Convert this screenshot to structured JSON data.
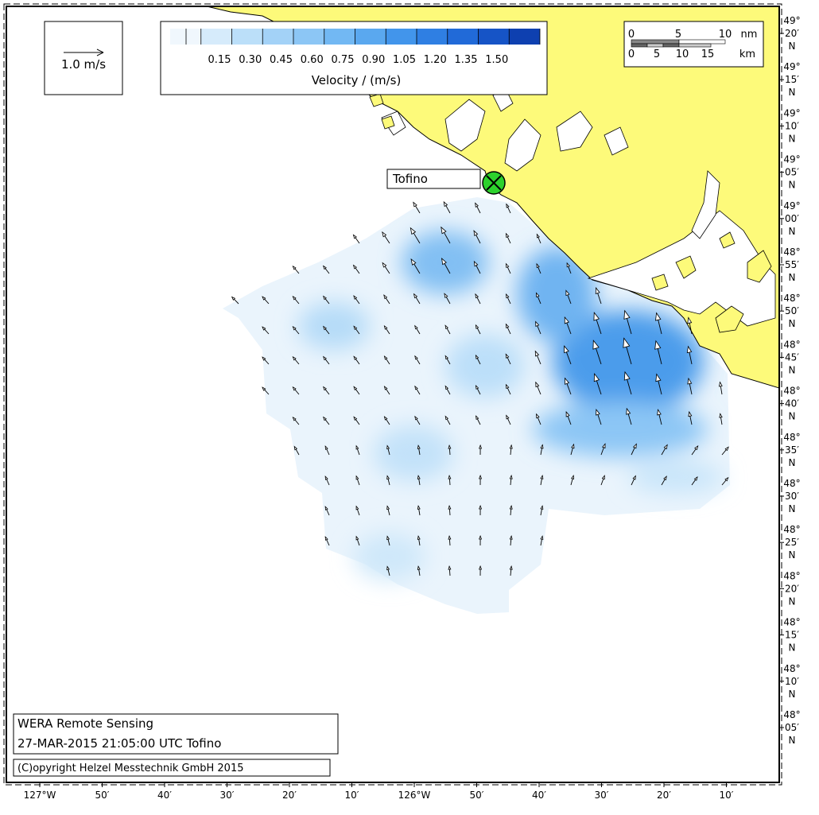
{
  "velocity_legend": {
    "ticks": [
      "0.15",
      "0.30",
      "0.45",
      "0.60",
      "0.75",
      "0.90",
      "1.05",
      "1.20",
      "1.35",
      "1.50"
    ],
    "colors": [
      "#f0f7fd",
      "#d6ebfb",
      "#bbdff9",
      "#a3d2f7",
      "#8cc6f5",
      "#72b8f3",
      "#5aa8ef",
      "#4295eb",
      "#2f7fe3",
      "#216ad8",
      "#1654c6",
      "#0e40b0"
    ],
    "label": "Velocity / (m/s)"
  },
  "scale_arrow": {
    "label": "1.0 m/s"
  },
  "distance_scale": {
    "nm_ticks": [
      "0",
      "5",
      "10"
    ],
    "nm_unit": "nm",
    "km_ticks": [
      "0",
      "5",
      "10",
      "15"
    ],
    "km_unit": "km"
  },
  "station": {
    "name": "Tofino"
  },
  "lat_labels": [
    [
      "49°",
      "20′",
      "N"
    ],
    [
      "49°",
      "15′",
      "N"
    ],
    [
      "49°",
      "10′",
      "N"
    ],
    [
      "49°",
      "05′",
      "N"
    ],
    [
      "49°",
      "00′",
      "N"
    ],
    [
      "48°",
      "55′",
      "N"
    ],
    [
      "48°",
      "50′",
      "N"
    ],
    [
      "48°",
      "45′",
      "N"
    ],
    [
      "48°",
      "40′",
      "N"
    ],
    [
      "48°",
      "35′",
      "N"
    ],
    [
      "48°",
      "30′",
      "N"
    ],
    [
      "48°",
      "25′",
      "N"
    ],
    [
      "48°",
      "20′",
      "N"
    ],
    [
      "48°",
      "15′",
      "N"
    ],
    [
      "48°",
      "10′",
      "N"
    ],
    [
      "48°",
      "05′",
      "N"
    ]
  ],
  "lon_labels": [
    "127°W",
    "50′",
    "40′",
    "30′",
    "20′",
    "10′",
    "126°W",
    "50′",
    "40′",
    "30′",
    "20′",
    "10′"
  ],
  "info_box": {
    "line1": "WERA Remote Sensing",
    "line2": "27-MAR-2015 21:05:00 UTC  Tofino"
  },
  "copyright": "(C)opyright Helzel Messtechnik GmbH 2015"
}
